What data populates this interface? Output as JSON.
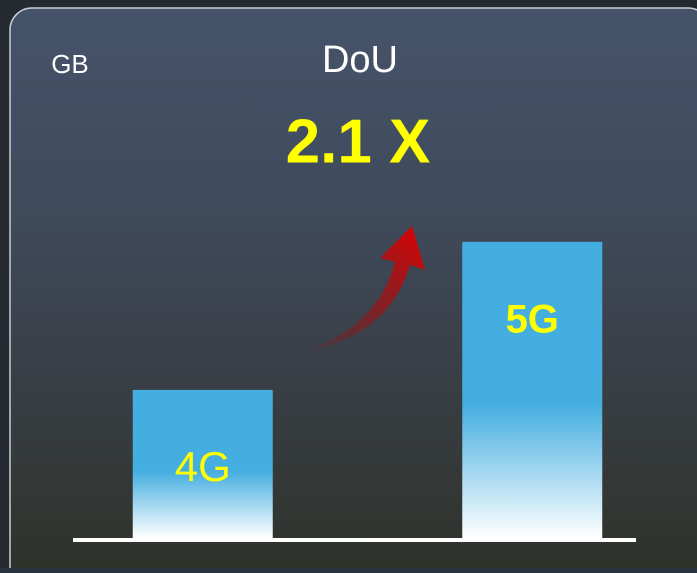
{
  "chart_data": {
    "type": "bar",
    "title": "DoU",
    "unit": "GB",
    "annotation": "2.1 X",
    "categories": [
      "4G",
      "5G"
    ],
    "values": [
      1,
      2
    ],
    "color": "#45aee0",
    "ylim": [
      0,
      2.6
    ]
  }
}
